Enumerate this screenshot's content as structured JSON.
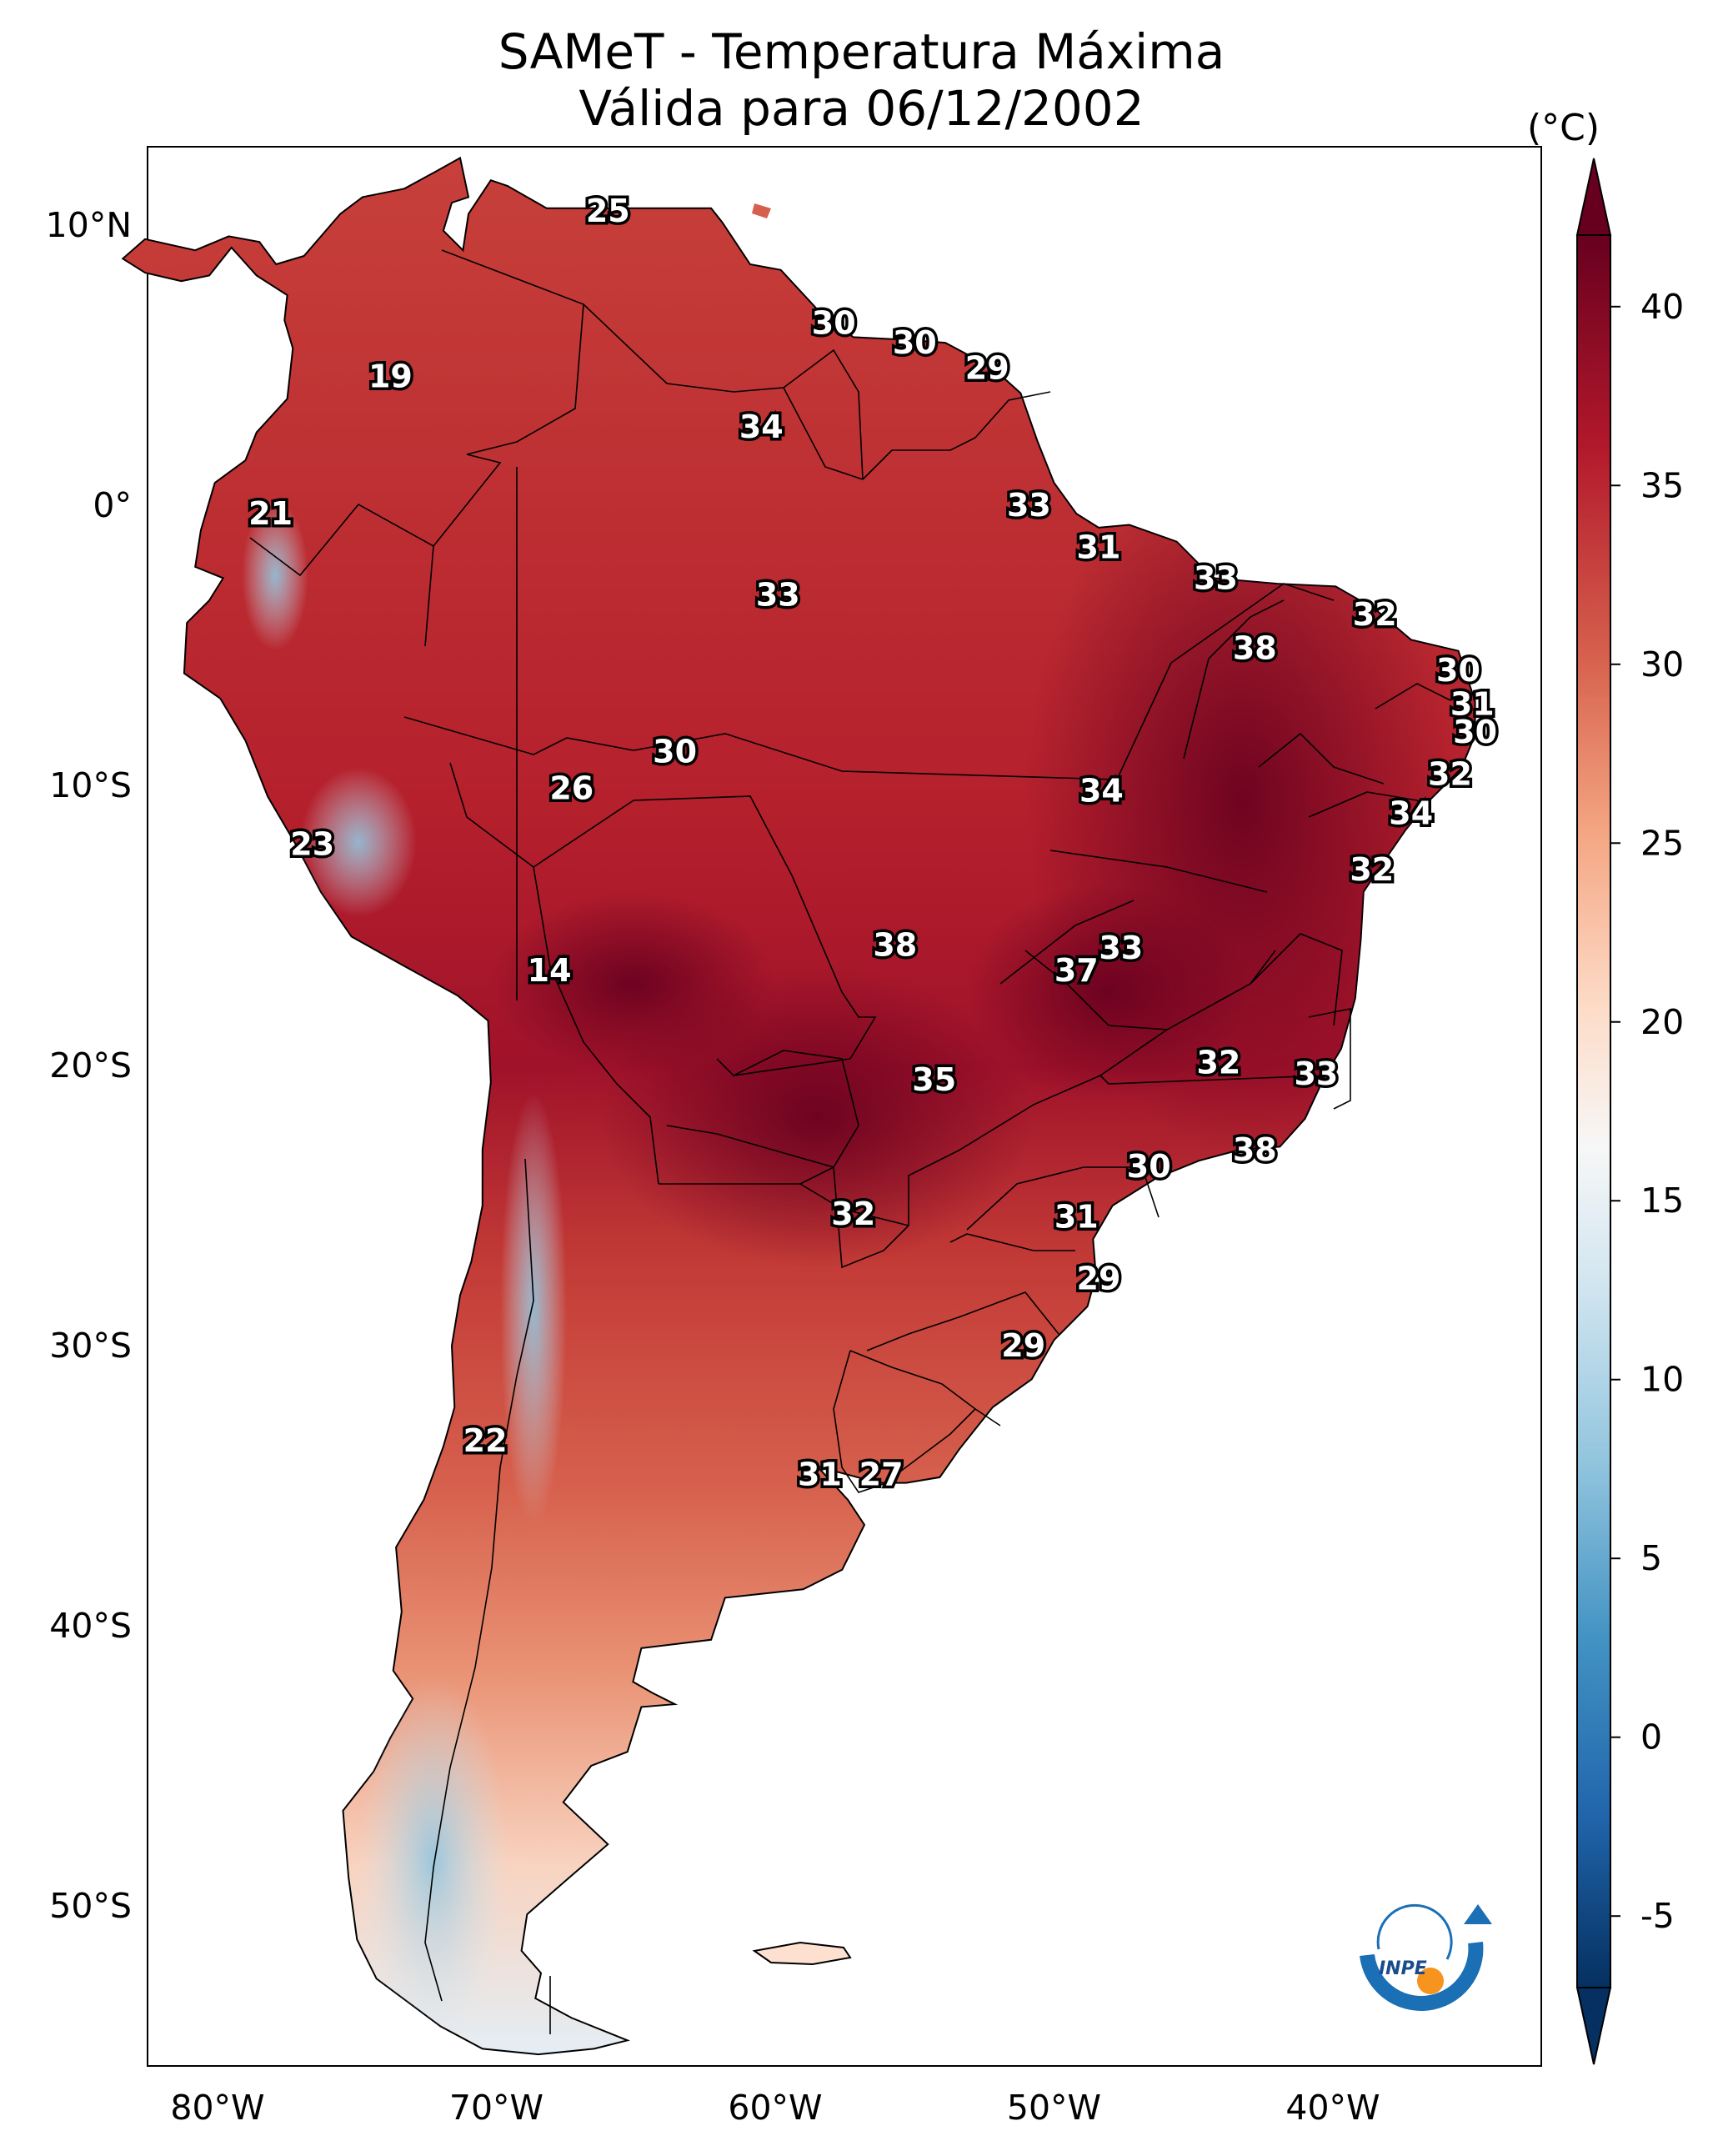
{
  "title": {
    "line1": "SAMeT - Temperatura Máxima",
    "line2": "Válida para 06/12/2002"
  },
  "colorbar": {
    "unit": "(°C)",
    "ticks": [
      "40",
      "35",
      "30",
      "25",
      "20",
      "15",
      "10",
      "5",
      "0",
      "-5"
    ],
    "range": [
      -7,
      42
    ],
    "extend": "both",
    "colors": [
      "#053061",
      "#2166ac",
      "#4393c3",
      "#92c5de",
      "#d1e5f0",
      "#f7f7f7",
      "#fddbc7",
      "#f4a582",
      "#d6604d",
      "#b2182b",
      "#67001f"
    ]
  },
  "axes": {
    "lat_labels": [
      "10°N",
      "0°",
      "10°S",
      "20°S",
      "30°S",
      "40°S",
      "50°S"
    ],
    "lon_labels": [
      "80°W",
      "70°W",
      "60°W",
      "50°W",
      "40°W"
    ]
  },
  "map_labels": [
    {
      "text": "25",
      "lon": -66.0,
      "lat": 10.5
    },
    {
      "text": "30",
      "lon": -57.9,
      "lat": 6.5
    },
    {
      "text": "30",
      "lon": -55.0,
      "lat": 5.8
    },
    {
      "text": "29",
      "lon": -52.4,
      "lat": 4.9
    },
    {
      "text": "19",
      "lon": -73.8,
      "lat": 4.6
    },
    {
      "text": "34",
      "lon": -60.5,
      "lat": 2.8
    },
    {
      "text": "33",
      "lon": -50.9,
      "lat": 0.0
    },
    {
      "text": "21",
      "lon": -78.1,
      "lat": -0.3
    },
    {
      "text": "31",
      "lon": -48.4,
      "lat": -1.5
    },
    {
      "text": "33",
      "lon": -44.2,
      "lat": -2.6
    },
    {
      "text": "33",
      "lon": -59.9,
      "lat": -3.2
    },
    {
      "text": "32",
      "lon": -38.5,
      "lat": -3.9
    },
    {
      "text": "38",
      "lon": -42.8,
      "lat": -5.1
    },
    {
      "text": "30",
      "lon": -35.5,
      "lat": -5.9
    },
    {
      "text": "31",
      "lon": -35.0,
      "lat": -7.1
    },
    {
      "text": "30",
      "lon": -34.9,
      "lat": -8.1
    },
    {
      "text": "30",
      "lon": -63.6,
      "lat": -8.8
    },
    {
      "text": "32",
      "lon": -35.8,
      "lat": -9.6
    },
    {
      "text": "26",
      "lon": -67.3,
      "lat": -10.1
    },
    {
      "text": "34",
      "lon": -48.3,
      "lat": -10.2
    },
    {
      "text": "34",
      "lon": -37.2,
      "lat": -11.0
    },
    {
      "text": "23",
      "lon": -76.6,
      "lat": -12.1
    },
    {
      "text": "32",
      "lon": -38.6,
      "lat": -13.0
    },
    {
      "text": "38",
      "lon": -55.7,
      "lat": -15.7
    },
    {
      "text": "33",
      "lon": -47.6,
      "lat": -15.8
    },
    {
      "text": "14",
      "lon": -68.1,
      "lat": -16.6
    },
    {
      "text": "37",
      "lon": -49.2,
      "lat": -16.6
    },
    {
      "text": "32",
      "lon": -44.1,
      "lat": -19.9
    },
    {
      "text": "33",
      "lon": -40.6,
      "lat": -20.3
    },
    {
      "text": "35",
      "lon": -54.3,
      "lat": -20.5
    },
    {
      "text": "38",
      "lon": -42.8,
      "lat": -23.0
    },
    {
      "text": "30",
      "lon": -46.6,
      "lat": -23.6
    },
    {
      "text": "32",
      "lon": -57.2,
      "lat": -25.3
    },
    {
      "text": "31",
      "lon": -49.2,
      "lat": -25.4
    },
    {
      "text": "29",
      "lon": -48.4,
      "lat": -27.6
    },
    {
      "text": "29",
      "lon": -51.1,
      "lat": -30.0
    },
    {
      "text": "22",
      "lon": -70.4,
      "lat": -33.4
    },
    {
      "text": "31",
      "lon": -58.4,
      "lat": -34.6
    },
    {
      "text": "27",
      "lon": -56.2,
      "lat": -34.6
    }
  ],
  "logo": {
    "text": "INPE"
  }
}
